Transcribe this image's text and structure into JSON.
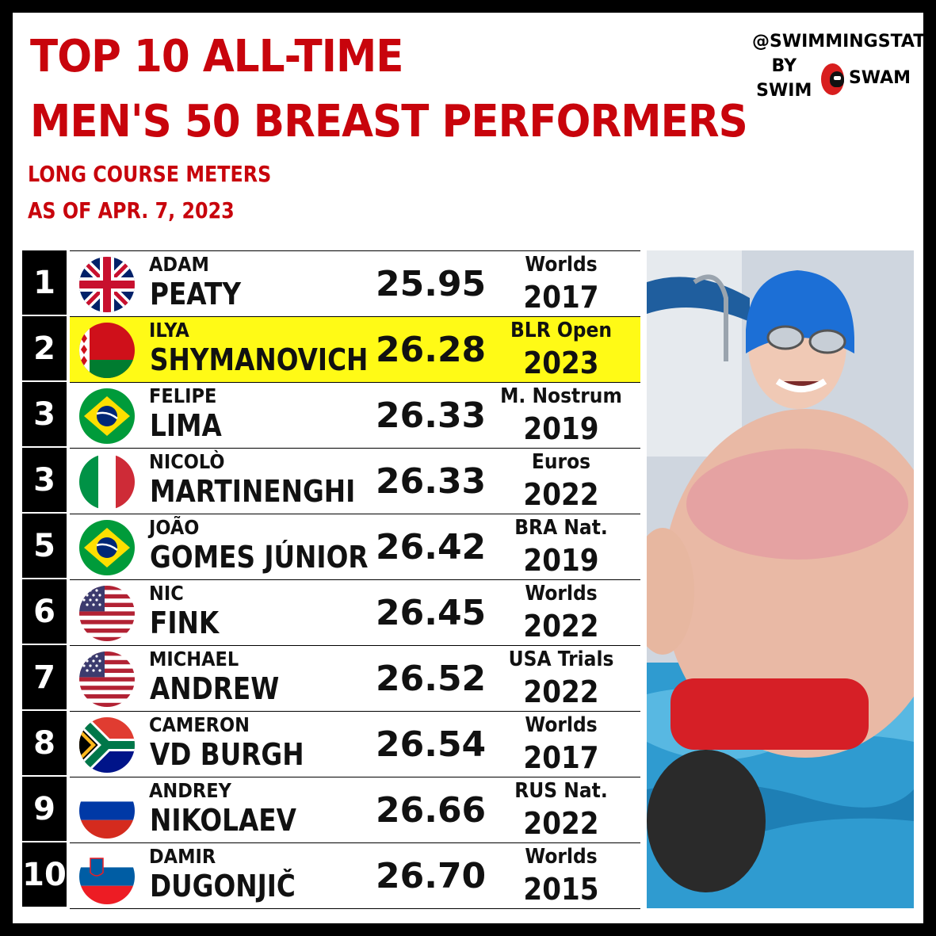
{
  "title": {
    "line1": "TOP 10 ALL-TIME",
    "line2": "MEN'S 50 BREAST PERFORMERS"
  },
  "subtitle": {
    "line1": "LONG COURSE METERS",
    "line2": "AS OF APR. 7, 2023"
  },
  "brand": {
    "handle": "@SWIMMINGSTATS",
    "by": "BY SWIM",
    "swam": "SWAM"
  },
  "colors": {
    "title_red": "#c8040c",
    "highlight": "#fffa16",
    "rank_bg": "#000000"
  },
  "rows": [
    {
      "rank": "1",
      "first": "ADAM",
      "last": "PEATY",
      "time": "25.95",
      "meet": "Worlds",
      "year": "2017",
      "flag": "gbr",
      "highlight": false
    },
    {
      "rank": "2",
      "first": "ILYA",
      "last": "SHYMANOVICH",
      "time": "26.28",
      "meet": "BLR Open",
      "year": "2023",
      "flag": "blr",
      "highlight": true
    },
    {
      "rank": "3",
      "first": "FELIPE",
      "last": "LIMA",
      "time": "26.33",
      "meet": "M. Nostrum",
      "year": "2019",
      "flag": "bra",
      "highlight": false
    },
    {
      "rank": "3",
      "first": "NICOLÒ",
      "last": "MARTINENGHI",
      "time": "26.33",
      "meet": "Euros",
      "year": "2022",
      "flag": "ita",
      "highlight": false
    },
    {
      "rank": "5",
      "first": "JOÃO",
      "last": "GOMES JÚNIOR",
      "time": "26.42",
      "meet": "BRA Nat.",
      "year": "2019",
      "flag": "bra",
      "highlight": false
    },
    {
      "rank": "6",
      "first": "NIC",
      "last": "FINK",
      "time": "26.45",
      "meet": "Worlds",
      "year": "2022",
      "flag": "usa",
      "highlight": false
    },
    {
      "rank": "7",
      "first": "MICHAEL",
      "last": "ANDREW",
      "time": "26.52",
      "meet": "USA Trials",
      "year": "2022",
      "flag": "usa",
      "highlight": false
    },
    {
      "rank": "8",
      "first": "CAMERON",
      "last": "VD BURGH",
      "time": "26.54",
      "meet": "Worlds",
      "year": "2017",
      "flag": "rsa",
      "highlight": false
    },
    {
      "rank": "9",
      "first": "ANDREY",
      "last": "NIKOLAEV",
      "time": "26.66",
      "meet": "RUS Nat.",
      "year": "2022",
      "flag": "rus",
      "highlight": false
    },
    {
      "rank": "10",
      "first": "DAMIR",
      "last": "DUGONJIČ",
      "time": "26.70",
      "meet": "Worlds",
      "year": "2015",
      "flag": "slo",
      "highlight": false
    }
  ]
}
